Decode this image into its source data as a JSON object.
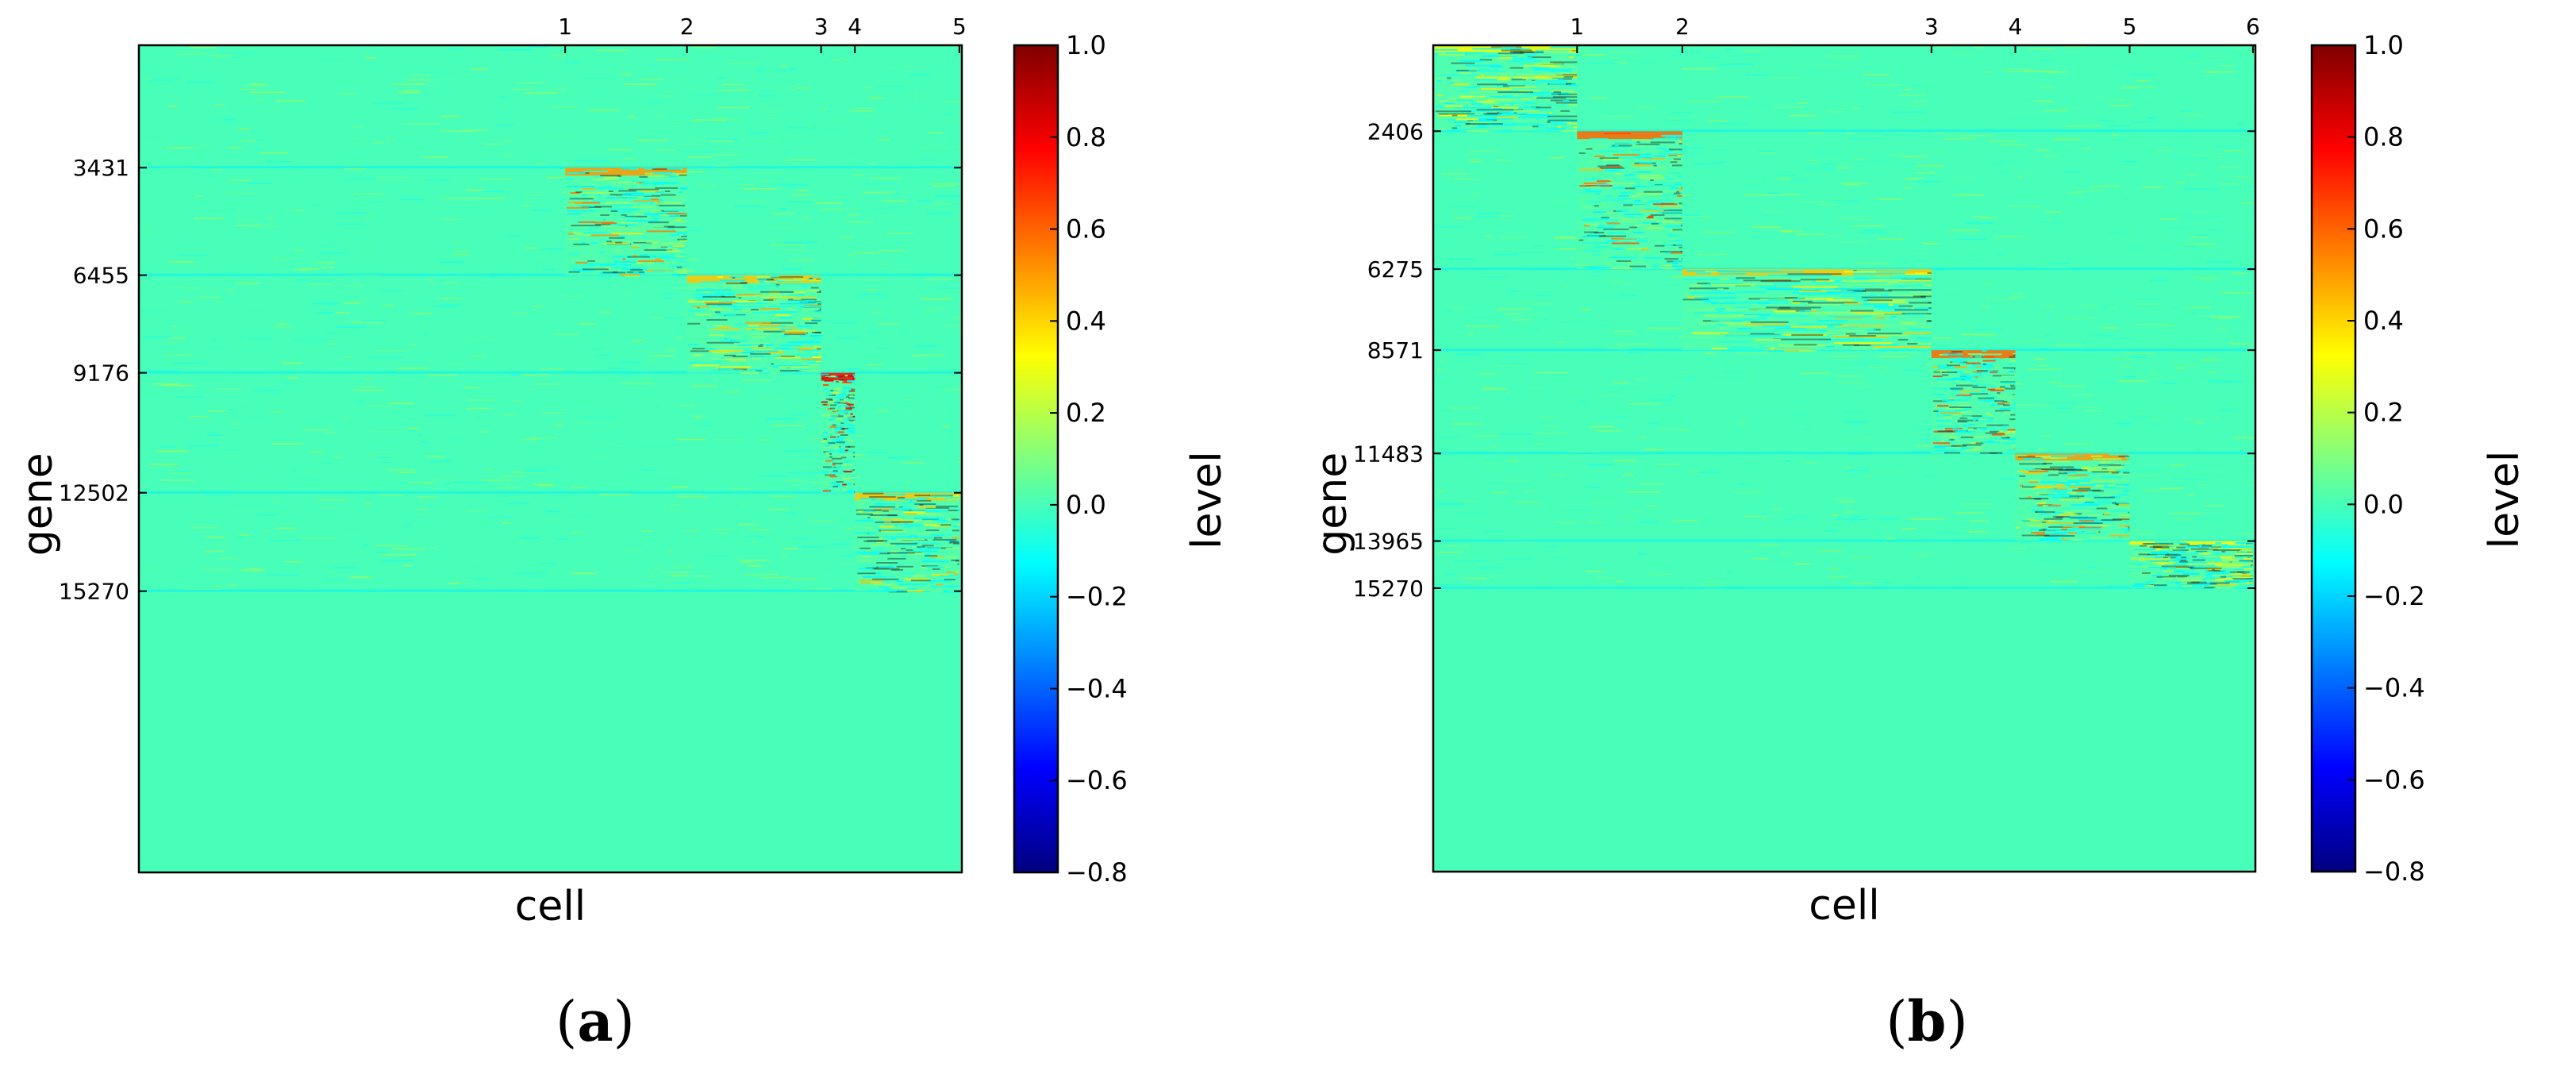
{
  "colorbar": {
    "label": "level",
    "ticks": [
      "1.0",
      "0.8",
      "0.6",
      "0.4",
      "0.2",
      "0.0",
      "−0.2",
      "−0.4",
      "−0.6",
      "−0.8"
    ],
    "colors": [
      "#00007f",
      "#0000ff",
      "#007fff",
      "#00ffff",
      "#7fff7f",
      "#ffff00",
      "#ff7f00",
      "#ff0000",
      "#7f0000"
    ]
  },
  "chart_data": [
    {
      "type": "heatmap",
      "panel_label": "a",
      "xlabel": "cell",
      "ylabel": "gene",
      "clim": [
        -0.8,
        1.0
      ],
      "background_level": 0.0,
      "x_cluster_ticks": [
        {
          "label": "1",
          "frac": 0.518
        },
        {
          "label": "2",
          "frac": 0.666
        },
        {
          "label": "3",
          "frac": 0.829
        },
        {
          "label": "4",
          "frac": 0.87
        },
        {
          "label": "5",
          "frac": 0.997
        }
      ],
      "y_ticks": [
        {
          "label": "3431",
          "frac": 0.148
        },
        {
          "label": "6455",
          "frac": 0.278
        },
        {
          "label": "9176",
          "frac": 0.396
        },
        {
          "label": "12502",
          "frac": 0.541
        },
        {
          "label": "15270",
          "frac": 0.66
        }
      ],
      "blocks": [
        {
          "x0": 0.518,
          "x1": 0.666,
          "y0": 0.148,
          "y1": 0.278,
          "peak": 0.6
        },
        {
          "x0": 0.666,
          "x1": 0.829,
          "y0": 0.278,
          "y1": 0.396,
          "peak": 0.5
        },
        {
          "x0": 0.829,
          "x1": 0.87,
          "y0": 0.396,
          "y1": 0.541,
          "peak": 0.9
        },
        {
          "x0": 0.87,
          "x1": 0.997,
          "y0": 0.541,
          "y1": 0.66,
          "peak": 0.5
        }
      ]
    },
    {
      "type": "heatmap",
      "panel_label": "b",
      "xlabel": "cell",
      "ylabel": "gene",
      "clim": [
        -0.8,
        1.0
      ],
      "background_level": 0.0,
      "x_cluster_ticks": [
        {
          "label": "1",
          "frac": 0.175
        },
        {
          "label": "2",
          "frac": 0.303
        },
        {
          "label": "3",
          "frac": 0.606
        },
        {
          "label": "4",
          "frac": 0.708
        },
        {
          "label": "5",
          "frac": 0.847
        },
        {
          "label": "6",
          "frac": 0.997
        }
      ],
      "y_ticks": [
        {
          "label": "2406",
          "frac": 0.104
        },
        {
          "label": "6275",
          "frac": 0.271
        },
        {
          "label": "8571",
          "frac": 0.369
        },
        {
          "label": "11483",
          "frac": 0.494
        },
        {
          "label": "13965",
          "frac": 0.6
        },
        {
          "label": "15270",
          "frac": 0.657
        }
      ],
      "blocks": [
        {
          "x0": 0.0,
          "x1": 0.175,
          "y0": 0.0,
          "y1": 0.104,
          "peak": 0.4
        },
        {
          "x0": 0.175,
          "x1": 0.303,
          "y0": 0.104,
          "y1": 0.271,
          "peak": 0.7
        },
        {
          "x0": 0.303,
          "x1": 0.606,
          "y0": 0.271,
          "y1": 0.369,
          "peak": 0.5
        },
        {
          "x0": 0.606,
          "x1": 0.708,
          "y0": 0.369,
          "y1": 0.494,
          "peak": 0.7
        },
        {
          "x0": 0.708,
          "x1": 0.847,
          "y0": 0.494,
          "y1": 0.6,
          "peak": 0.6
        },
        {
          "x0": 0.847,
          "x1": 0.997,
          "y0": 0.6,
          "y1": 0.657,
          "peak": 0.4
        }
      ]
    }
  ]
}
